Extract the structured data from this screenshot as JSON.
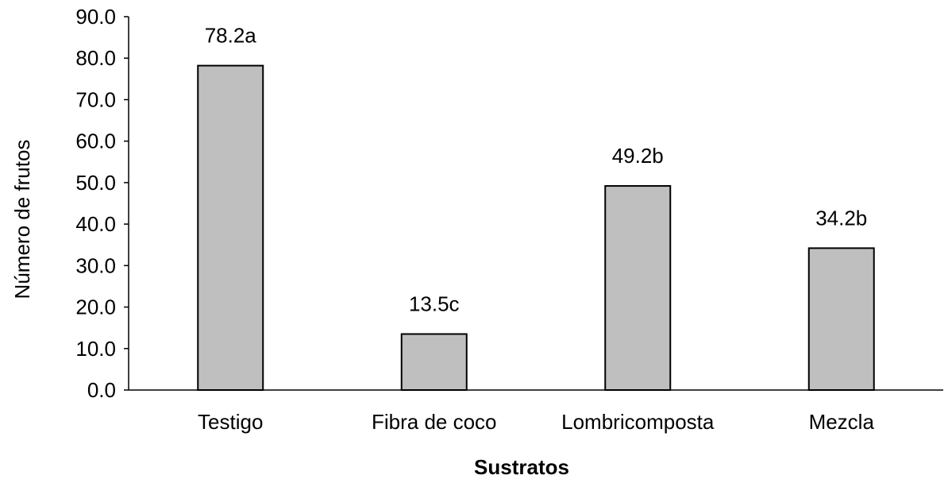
{
  "chart_data": {
    "type": "bar",
    "title": "",
    "xlabel": "Sustratos",
    "ylabel": "Número de frutos",
    "ylim": [
      0,
      90
    ],
    "ytick_step": 10,
    "ytick_labels": [
      "0.0",
      "10.0",
      "20.0",
      "30.0",
      "40.0",
      "50.0",
      "60.0",
      "70.0",
      "80.0",
      "90.0"
    ],
    "categories": [
      "Testigo",
      "Fibra de coco",
      "Lombricomposta",
      "Mezcla"
    ],
    "values": [
      78.2,
      13.5,
      49.2,
      34.2
    ],
    "data_labels": [
      "78.2a",
      "13.5c",
      "49.2b",
      "34.2b"
    ],
    "bar_color": "#bfbfbf",
    "bar_edge_color": "#000000",
    "grid": false,
    "legend": "none"
  }
}
